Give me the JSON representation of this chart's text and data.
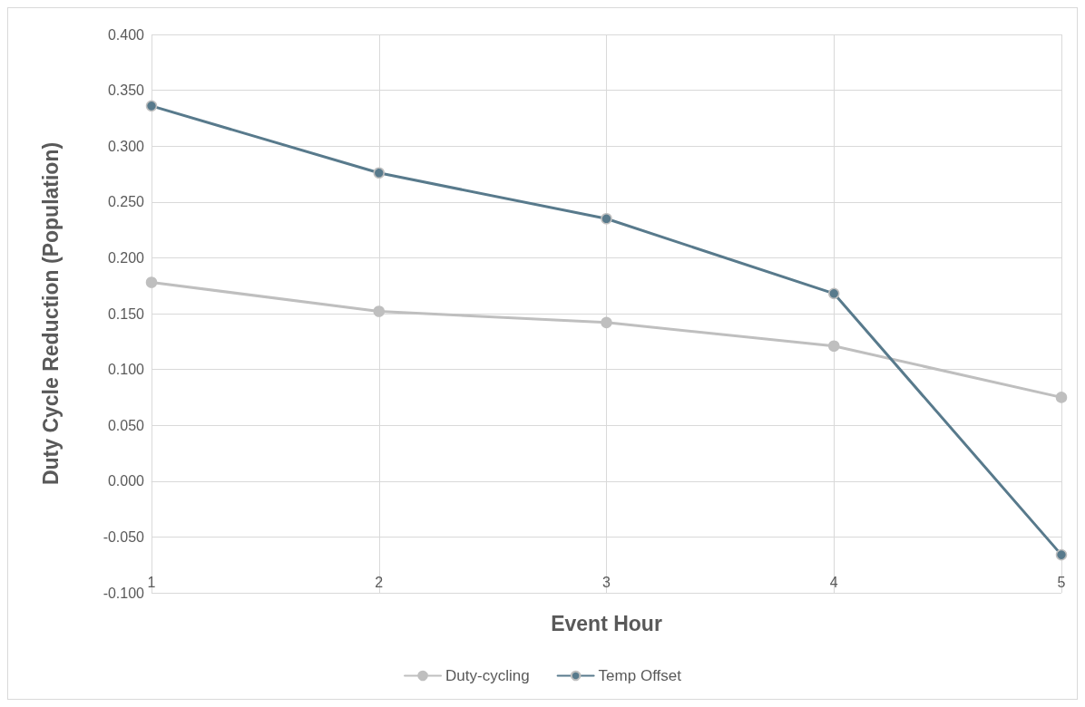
{
  "chart_data": {
    "type": "line",
    "xlabel": "Event Hour",
    "ylabel": "Duty Cycle Reduction (Population)",
    "x": [
      1,
      2,
      3,
      4,
      5
    ],
    "series": [
      {
        "name": "Duty-cycling",
        "color": "#bfbfbf",
        "values": [
          0.178,
          0.152,
          0.142,
          0.121,
          0.075
        ]
      },
      {
        "name": "Temp Offset",
        "color": "#587a8c",
        "values": [
          0.336,
          0.276,
          0.235,
          0.168,
          -0.066
        ]
      }
    ],
    "xlim": [
      1,
      5
    ],
    "xticks": [
      1,
      2,
      3,
      4,
      5
    ],
    "ylim": [
      -0.1,
      0.4
    ],
    "yticks": [
      {
        "value": -0.1,
        "label": "-0.100"
      },
      {
        "value": -0.05,
        "label": "-0.050"
      },
      {
        "value": 0,
        "label": "0.000"
      },
      {
        "value": 0.05,
        "label": "0.050"
      },
      {
        "value": 0.1,
        "label": "0.100"
      },
      {
        "value": 0.15,
        "label": "0.150"
      },
      {
        "value": 0.2,
        "label": "0.200"
      },
      {
        "value": 0.25,
        "label": "0.250"
      },
      {
        "value": 0.3,
        "label": "0.300"
      },
      {
        "value": 0.35,
        "label": "0.350"
      },
      {
        "value": 0.4,
        "label": "0.400"
      }
    ],
    "grid": true,
    "legend": "bottom",
    "marker": "circle",
    "line_style": "solid"
  }
}
